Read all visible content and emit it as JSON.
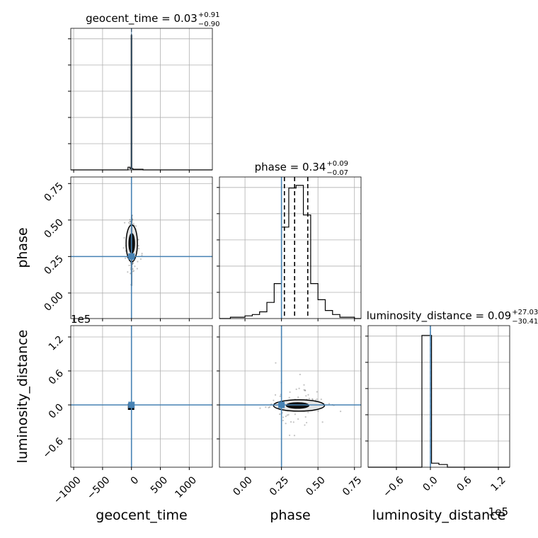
{
  "chart_data": {
    "type": "corner",
    "colors": {
      "truth": "#4682b4",
      "hist": "#000000",
      "grid": "#b0b0b0",
      "scatter": "#555555"
    },
    "parameters": [
      "geocent_time",
      "phase",
      "luminosity_distance"
    ],
    "axis_labels": {
      "x": [
        "geocent_time",
        "phase",
        "luminosity_distance"
      ],
      "y": [
        "phase",
        "luminosity_distance"
      ]
    },
    "titles": [
      {
        "name": "geocent_time",
        "median": "0.03",
        "plus": "+0.91",
        "minus": "−0.90"
      },
      {
        "name": "phase",
        "median": "0.34",
        "plus": "+0.09",
        "minus": "−0.07"
      },
      {
        "name": "luminosity_distance",
        "median": "0.09",
        "plus": "+27.03",
        "minus": "−30.41"
      }
    ],
    "offset_labels": {
      "left_lum": "1e5",
      "bottom_lum": "1e5"
    },
    "ranges": {
      "geocent_time": [
        -1050,
        1400
      ],
      "phase": [
        -0.175,
        0.795
      ],
      "luminosity_distance": [
        -1.1,
        1.4
      ]
    },
    "ticks": {
      "geocent_time": [
        -1000,
        -500,
        0,
        500,
        1000
      ],
      "geocent_time_labels": [
        "−1000",
        "−500",
        "0",
        "500",
        "1000"
      ],
      "phase": [
        0.0,
        0.25,
        0.5,
        0.75
      ],
      "phase_labels": [
        "0.00",
        "0.25",
        "0.50",
        "0.75"
      ],
      "luminosity_distance": [
        -0.6,
        0.0,
        0.6,
        1.2
      ],
      "luminosity_distance_labels": [
        "−0.6",
        "0.0",
        "0.6",
        "1.2"
      ]
    },
    "truths": {
      "geocent_time": 0,
      "phase": 0.25,
      "luminosity_distance": 0.0
    },
    "quantiles": {
      "phase": [
        0.27,
        0.34,
        0.43
      ]
    },
    "hist_geocent_time": {
      "edges": [
        -1050,
        -802.5,
        -555,
        -307.5,
        -60,
        -25,
        -5,
        5,
        25,
        60,
        200,
        1400
      ],
      "counts": [
        0,
        0,
        0,
        0,
        0.02,
        0.01,
        1.0,
        0.01,
        0.005,
        0.005,
        0
      ]
    },
    "hist_phase": {
      "edges": [
        -0.175,
        -0.15,
        -0.1,
        -0.05,
        0.0,
        0.05,
        0.1,
        0.15,
        0.2,
        0.25,
        0.3,
        0.35,
        0.4,
        0.45,
        0.5,
        0.55,
        0.6,
        0.65,
        0.7,
        0.75,
        0.795
      ],
      "counts": [
        0,
        0,
        0.01,
        0.01,
        0.02,
        0.03,
        0.05,
        0.12,
        0.26,
        0.68,
        0.97,
        0.99,
        0.77,
        0.26,
        0.14,
        0.06,
        0.03,
        0.01,
        0.01,
        0
      ]
    },
    "hist_luminosity_distance": {
      "edges": [
        -1.1,
        -0.9,
        -0.7,
        -0.5,
        -0.3,
        -0.15,
        -0.02,
        0.02,
        0.15,
        0.3,
        1.4
      ],
      "counts": [
        0,
        0,
        0,
        0,
        0,
        0.98,
        0.98,
        0.03,
        0.02,
        0
      ]
    }
  }
}
